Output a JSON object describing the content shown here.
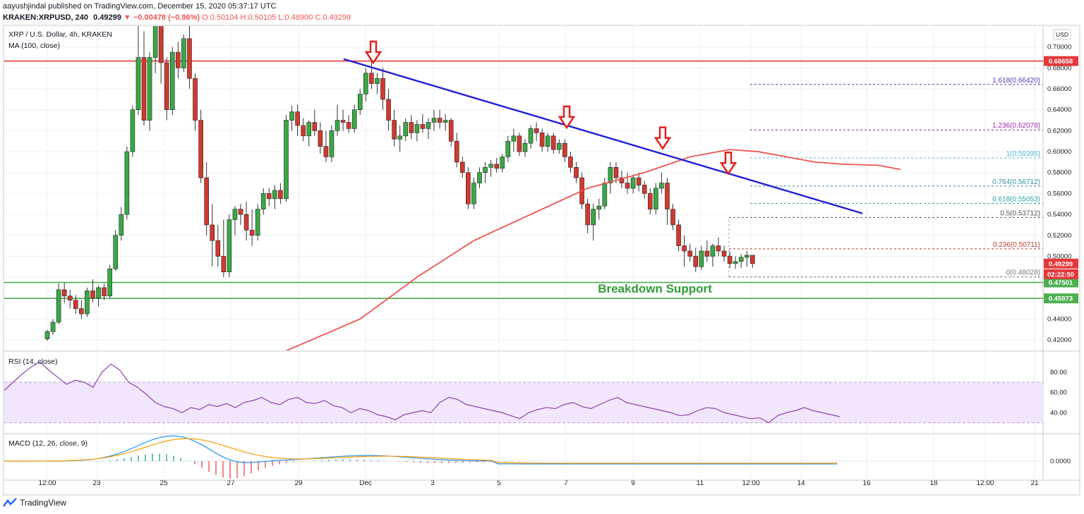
{
  "header": {
    "published": "aayushjindal published on TradingView.com, December 15, 2020 05:37:17 UTC",
    "symbol": "KRAKEN:XRPUSD, 240",
    "last": "0.49299",
    "change": "▼ −0.00478 (−0.96%)",
    "ohlc": "O:0.50104 H:0.50105 L:0.48900 C:0.49299"
  },
  "footer": {
    "brand": "TradingView"
  },
  "chart_data": {
    "type": "candlestick",
    "title": "XRP / U.S. Dollar, 4h, KRAKEN",
    "indicator": "MA (100, close)",
    "currency": "USD",
    "y_ticks": [
      "0.70000",
      "0.68000",
      "0.66000",
      "0.64000",
      "0.62000",
      "0.60000",
      "0.58000",
      "0.56000",
      "0.54000",
      "0.52000",
      "0.50000",
      "0.48000",
      "0.46000",
      "0.44000",
      "0.42000"
    ],
    "ylim": [
      0.41,
      0.72
    ],
    "x_ticks": [
      "12:00",
      "23",
      "25",
      "27",
      "29",
      "Dec",
      "3",
      "5",
      "7",
      "9",
      "11",
      "12:00",
      "14",
      "16",
      "18",
      "12:00",
      "21"
    ],
    "price_labels": [
      {
        "value": 0.68658,
        "text": "0.68658",
        "color": "#e5383b"
      },
      {
        "value": 0.49299,
        "text": "0.49299",
        "color": "#e5383b"
      },
      {
        "value": 0.47501,
        "text": "0.47501",
        "color": "#4caf50"
      },
      {
        "value": 0.45973,
        "text": "0.45973",
        "color": "#4caf50"
      }
    ],
    "countdown": "02:22:50",
    "horizontal_levels": [
      {
        "value": 0.68658,
        "color": "#e5383b",
        "label": ""
      },
      {
        "value": 0.47501,
        "color": "#4caf50",
        "label": ""
      },
      {
        "value": 0.45973,
        "color": "#4caf50",
        "label": ""
      }
    ],
    "breakdown_label": "Breakdown Support",
    "fib_levels": [
      {
        "ratio": "1.618",
        "value": 0.6642,
        "text": "1.618(0.66420)",
        "color": "#5e35b1"
      },
      {
        "ratio": "1.236",
        "value": 0.62078,
        "text": "1.236(0.62078)",
        "color": "#9c27b0"
      },
      {
        "ratio": "1",
        "value": 0.59395,
        "text": "1(0.59395)",
        "color": "#4fb6d6"
      },
      {
        "ratio": "0.764",
        "value": 0.56712,
        "text": "0.764(0.56712)",
        "color": "#2f8fa6"
      },
      {
        "ratio": "0.618",
        "value": 0.55053,
        "text": "0.618(0.55053)",
        "color": "#26a69a"
      },
      {
        "ratio": "0.5",
        "value": 0.53712,
        "text": "0.5(0.53712)",
        "color": "#555555"
      },
      {
        "ratio": "0.236",
        "value": 0.50711,
        "text": "0.236(0.50711)",
        "color": "#c0392b"
      },
      {
        "ratio": "0",
        "value": 0.48028,
        "text": "0(0.48028)",
        "color": "#777777"
      }
    ],
    "candles": [
      [
        0.421,
        0.43,
        0.419,
        0.428
      ],
      [
        0.428,
        0.44,
        0.425,
        0.437
      ],
      [
        0.437,
        0.474,
        0.435,
        0.468
      ],
      [
        0.468,
        0.475,
        0.455,
        0.462
      ],
      [
        0.462,
        0.468,
        0.45,
        0.458
      ],
      [
        0.458,
        0.463,
        0.445,
        0.45
      ],
      [
        0.45,
        0.458,
        0.44,
        0.445
      ],
      [
        0.445,
        0.47,
        0.442,
        0.467
      ],
      [
        0.467,
        0.478,
        0.456,
        0.46
      ],
      [
        0.46,
        0.472,
        0.452,
        0.47
      ],
      [
        0.47,
        0.474,
        0.458,
        0.462
      ],
      [
        0.462,
        0.492,
        0.46,
        0.488
      ],
      [
        0.488,
        0.525,
        0.486,
        0.52
      ],
      [
        0.52,
        0.547,
        0.515,
        0.54
      ],
      [
        0.54,
        0.605,
        0.535,
        0.6
      ],
      [
        0.6,
        0.644,
        0.595,
        0.64
      ],
      [
        0.64,
        0.725,
        0.635,
        0.69
      ],
      [
        0.69,
        0.715,
        0.625,
        0.63
      ],
      [
        0.63,
        0.695,
        0.62,
        0.69
      ],
      [
        0.69,
        0.73,
        0.675,
        0.725
      ],
      [
        0.725,
        0.73,
        0.665,
        0.685
      ],
      [
        0.685,
        0.69,
        0.63,
        0.64
      ],
      [
        0.64,
        0.7,
        0.635,
        0.695
      ],
      [
        0.695,
        0.705,
        0.67,
        0.68
      ],
      [
        0.68,
        0.712,
        0.676,
        0.708
      ],
      [
        0.708,
        0.72,
        0.66,
        0.67
      ],
      [
        0.67,
        0.675,
        0.62,
        0.63
      ],
      [
        0.63,
        0.64,
        0.57,
        0.575
      ],
      [
        0.575,
        0.59,
        0.52,
        0.53
      ],
      [
        0.53,
        0.55,
        0.49,
        0.515
      ],
      [
        0.515,
        0.53,
        0.49,
        0.5
      ],
      [
        0.5,
        0.535,
        0.48,
        0.485
      ],
      [
        0.485,
        0.54,
        0.48,
        0.535
      ],
      [
        0.535,
        0.548,
        0.52,
        0.545
      ],
      [
        0.545,
        0.55,
        0.53,
        0.54
      ],
      [
        0.54,
        0.552,
        0.515,
        0.525
      ],
      [
        0.525,
        0.545,
        0.51,
        0.52
      ],
      [
        0.52,
        0.55,
        0.515,
        0.545
      ],
      [
        0.545,
        0.565,
        0.54,
        0.56
      ],
      [
        0.56,
        0.565,
        0.548,
        0.555
      ],
      [
        0.555,
        0.568,
        0.545,
        0.563
      ],
      [
        0.563,
        0.57,
        0.55,
        0.555
      ],
      [
        0.555,
        0.635,
        0.552,
        0.63
      ],
      [
        0.63,
        0.644,
        0.62,
        0.638
      ],
      [
        0.638,
        0.645,
        0.615,
        0.625
      ],
      [
        0.625,
        0.632,
        0.61,
        0.615
      ],
      [
        0.615,
        0.63,
        0.605,
        0.628
      ],
      [
        0.628,
        0.64,
        0.615,
        0.62
      ],
      [
        0.62,
        0.628,
        0.598,
        0.605
      ],
      [
        0.605,
        0.62,
        0.59,
        0.595
      ],
      [
        0.595,
        0.625,
        0.59,
        0.62
      ],
      [
        0.62,
        0.645,
        0.615,
        0.63
      ],
      [
        0.63,
        0.64,
        0.62,
        0.628
      ],
      [
        0.628,
        0.635,
        0.618,
        0.622
      ],
      [
        0.622,
        0.645,
        0.618,
        0.64
      ],
      [
        0.64,
        0.66,
        0.635,
        0.655
      ],
      [
        0.655,
        0.68,
        0.648,
        0.675
      ],
      [
        0.675,
        0.686,
        0.66,
        0.665
      ],
      [
        0.665,
        0.675,
        0.655,
        0.67
      ],
      [
        0.67,
        0.68,
        0.64,
        0.65
      ],
      [
        0.65,
        0.66,
        0.62,
        0.63
      ],
      [
        0.63,
        0.64,
        0.605,
        0.612
      ],
      [
        0.612,
        0.625,
        0.6,
        0.615
      ],
      [
        0.615,
        0.632,
        0.61,
        0.628
      ],
      [
        0.628,
        0.635,
        0.612,
        0.618
      ],
      [
        0.618,
        0.63,
        0.61,
        0.626
      ],
      [
        0.626,
        0.636,
        0.618,
        0.622
      ],
      [
        0.622,
        0.632,
        0.612,
        0.628
      ],
      [
        0.628,
        0.64,
        0.62,
        0.632
      ],
      [
        0.632,
        0.64,
        0.622,
        0.628
      ],
      [
        0.628,
        0.636,
        0.62,
        0.63
      ],
      [
        0.63,
        0.632,
        0.605,
        0.61
      ],
      [
        0.61,
        0.618,
        0.585,
        0.59
      ],
      [
        0.59,
        0.595,
        0.575,
        0.58
      ],
      [
        0.58,
        0.585,
        0.545,
        0.55
      ],
      [
        0.55,
        0.575,
        0.545,
        0.57
      ],
      [
        0.57,
        0.585,
        0.565,
        0.58
      ],
      [
        0.58,
        0.59,
        0.57,
        0.585
      ],
      [
        0.585,
        0.592,
        0.576,
        0.588
      ],
      [
        0.588,
        0.594,
        0.58,
        0.584
      ],
      [
        0.584,
        0.598,
        0.58,
        0.595
      ],
      [
        0.595,
        0.615,
        0.59,
        0.61
      ],
      [
        0.61,
        0.622,
        0.6,
        0.615
      ],
      [
        0.615,
        0.618,
        0.596,
        0.6
      ],
      [
        0.6,
        0.612,
        0.595,
        0.608
      ],
      [
        0.608,
        0.625,
        0.603,
        0.622
      ],
      [
        0.622,
        0.628,
        0.61,
        0.618
      ],
      [
        0.618,
        0.622,
        0.6,
        0.605
      ],
      [
        0.605,
        0.618,
        0.6,
        0.615
      ],
      [
        0.615,
        0.618,
        0.598,
        0.602
      ],
      [
        0.602,
        0.612,
        0.598,
        0.608
      ],
      [
        0.608,
        0.612,
        0.59,
        0.595
      ],
      [
        0.595,
        0.6,
        0.58,
        0.585
      ],
      [
        0.585,
        0.59,
        0.57,
        0.575
      ],
      [
        0.575,
        0.58,
        0.545,
        0.55
      ],
      [
        0.55,
        0.555,
        0.522,
        0.53
      ],
      [
        0.53,
        0.55,
        0.515,
        0.545
      ],
      [
        0.545,
        0.555,
        0.535,
        0.548
      ],
      [
        0.548,
        0.575,
        0.545,
        0.57
      ],
      [
        0.57,
        0.59,
        0.56,
        0.585
      ],
      [
        0.585,
        0.59,
        0.57,
        0.575
      ],
      [
        0.575,
        0.582,
        0.565,
        0.57
      ],
      [
        0.57,
        0.58,
        0.56,
        0.565
      ],
      [
        0.565,
        0.578,
        0.56,
        0.575
      ],
      [
        0.575,
        0.58,
        0.562,
        0.568
      ],
      [
        0.568,
        0.572,
        0.555,
        0.56
      ],
      [
        0.56,
        0.565,
        0.54,
        0.545
      ],
      [
        0.545,
        0.57,
        0.54,
        0.565
      ],
      [
        0.565,
        0.58,
        0.56,
        0.57
      ],
      [
        0.57,
        0.575,
        0.53,
        0.545
      ],
      [
        0.545,
        0.55,
        0.525,
        0.53
      ],
      [
        0.53,
        0.535,
        0.505,
        0.51
      ],
      [
        0.51,
        0.52,
        0.49,
        0.505
      ],
      [
        0.505,
        0.512,
        0.495,
        0.5
      ],
      [
        0.5,
        0.508,
        0.485,
        0.49
      ],
      [
        0.49,
        0.51,
        0.487,
        0.505
      ],
      [
        0.505,
        0.515,
        0.495,
        0.5
      ],
      [
        0.5,
        0.512,
        0.49,
        0.51
      ],
      [
        0.51,
        0.518,
        0.5,
        0.505
      ],
      [
        0.505,
        0.51,
        0.495,
        0.5
      ],
      [
        0.5,
        0.505,
        0.489,
        0.493
      ],
      [
        0.493,
        0.5,
        0.488,
        0.495
      ],
      [
        0.495,
        0.502,
        0.489,
        0.499
      ],
      [
        0.499,
        0.505,
        0.49,
        0.501
      ],
      [
        0.501,
        0.50105,
        0.489,
        0.49299
      ]
    ],
    "ma100": [
      [
        40,
        0.405
      ],
      [
        55,
        0.44
      ],
      [
        65,
        0.48
      ],
      [
        75,
        0.515
      ],
      [
        85,
        0.54
      ],
      [
        95,
        0.565
      ],
      [
        105,
        0.58
      ],
      [
        113,
        0.595
      ],
      [
        120,
        0.602
      ],
      [
        125,
        0.6
      ],
      [
        130,
        0.595
      ],
      [
        135,
        0.59
      ],
      [
        140,
        0.588
      ],
      [
        146,
        0.587
      ],
      [
        150,
        0.583
      ]
    ],
    "trendline": {
      "from": [
        0.487,
        0.6885
      ],
      "to": [
        1.222,
        0.541
      ]
    },
    "red_arrows": [
      0.529,
      0.803,
      0.939,
      1.032
    ],
    "rsi": {
      "label": "RSI (14, close)",
      "ticks": [
        "80.00",
        "60.00",
        "40.00"
      ],
      "band": [
        30,
        70
      ],
      "values": [
        62,
        70,
        78,
        85,
        90,
        82,
        75,
        68,
        72,
        70,
        65,
        80,
        88,
        82,
        70,
        65,
        58,
        50,
        46,
        44,
        40,
        45,
        43,
        48,
        46,
        49,
        45,
        50,
        52,
        55,
        50,
        48,
        53,
        55,
        50,
        49,
        52,
        47,
        45,
        40,
        44,
        42,
        38,
        36,
        33,
        38,
        40,
        42,
        40,
        50,
        55,
        53,
        48,
        46,
        44,
        42,
        40,
        37,
        34,
        40,
        43,
        45,
        44,
        48,
        50,
        46,
        44,
        48,
        52,
        55,
        50,
        48,
        46,
        44,
        42,
        40,
        37,
        38,
        42,
        45,
        44,
        40,
        38,
        36,
        34,
        35,
        30,
        37,
        40,
        42,
        45,
        42,
        40,
        38,
        36
      ]
    },
    "macd": {
      "label": "MACD (12, 26, close, 9)",
      "ticks": [
        "0.0000"
      ]
    }
  }
}
